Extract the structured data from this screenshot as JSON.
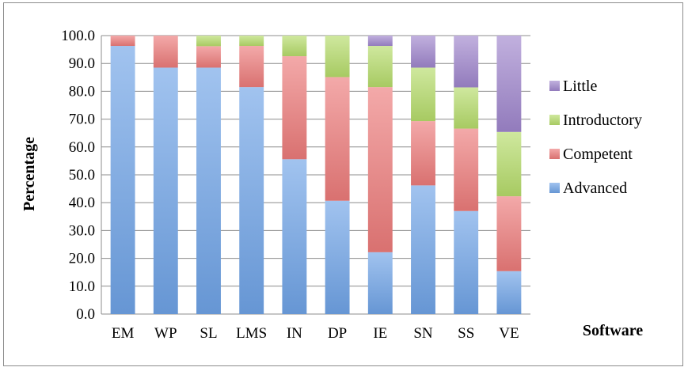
{
  "chart_data": {
    "type": "bar",
    "stacked": true,
    "title": "",
    "xlabel": "Software",
    "ylabel": "Percentage",
    "ylim": [
      0,
      100
    ],
    "y_ticks": [
      "0.0",
      "10.0",
      "20.0",
      "30.0",
      "40.0",
      "50.0",
      "60.0",
      "70.0",
      "80.0",
      "90.0",
      "100.0"
    ],
    "grid": true,
    "legend_position": "right",
    "categories": [
      "EM",
      "WP",
      "SL",
      "LMS",
      "IN",
      "DP",
      "IE",
      "SN",
      "SS",
      "VE"
    ],
    "series": [
      {
        "name": "Advanced",
        "color": "#6fa3e6",
        "values": [
          96.3,
          88.5,
          88.5,
          81.5,
          55.6,
          40.7,
          22.2,
          46.2,
          37.0,
          15.4
        ]
      },
      {
        "name": "Competent",
        "color": "#ec7b7a",
        "values": [
          3.7,
          11.5,
          7.7,
          14.8,
          37.0,
          44.4,
          59.3,
          23.1,
          29.6,
          26.9
        ]
      },
      {
        "name": "Introductory",
        "color": "#b5dc6a",
        "values": [
          0.0,
          0.0,
          3.8,
          3.7,
          7.4,
          14.9,
          14.8,
          19.2,
          14.8,
          23.1
        ]
      },
      {
        "name": "Little",
        "color": "#9f86cc",
        "values": [
          0.0,
          0.0,
          0.0,
          0.0,
          0.0,
          0.0,
          3.7,
          11.5,
          18.6,
          34.6
        ]
      }
    ]
  }
}
